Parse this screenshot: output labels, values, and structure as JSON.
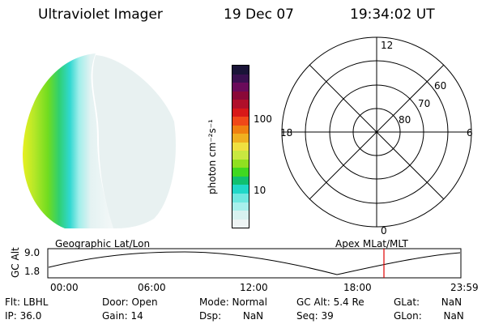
{
  "header": {
    "instrument": "Ultraviolet Imager",
    "date": "19 Dec 07",
    "time": "19:34:02 UT"
  },
  "colorbar": {
    "label": "photon cm⁻²s⁻¹",
    "ticks": [
      "100",
      "10"
    ],
    "colors": [
      "#1a1438",
      "#3a1050",
      "#6a0a5a",
      "#8a0838",
      "#b0102a",
      "#d81818",
      "#f04818",
      "#f08010",
      "#f0b020",
      "#f0e040",
      "#c8e840",
      "#90e020",
      "#40d820",
      "#10c070",
      "#20d8c8",
      "#70e8e0",
      "#a8f0ec",
      "#d8f2f0",
      "#eef4f4"
    ]
  },
  "polar": {
    "mlt_labels": {
      "top": "12",
      "bottom": "0",
      "left": "18",
      "right": "6"
    },
    "lat_labels": [
      "60",
      "70",
      "80"
    ]
  },
  "timeline": {
    "left_title": "Geographic Lat/Lon",
    "right_title": "Apex  MLat/MLT",
    "y_label": "GC Alt",
    "y_ticks": [
      "9.0",
      "1.8"
    ],
    "x_ticks": [
      "00:00",
      "06:00",
      "12:00",
      "18:00",
      "23:59"
    ],
    "marker_color": "#e00000"
  },
  "info": {
    "flt": "Flt: LBHL",
    "ip": "IP: 36.0",
    "door": "Door: Open",
    "gain": "Gain: 14",
    "mode": "Mode: Normal",
    "dsp": "Dsp:       NaN",
    "gcalt": "GC Alt: 5.4 Re",
    "seq": "Seq: 39",
    "glat": "GLat:       NaN",
    "glon": "GLon:       NaN"
  }
}
